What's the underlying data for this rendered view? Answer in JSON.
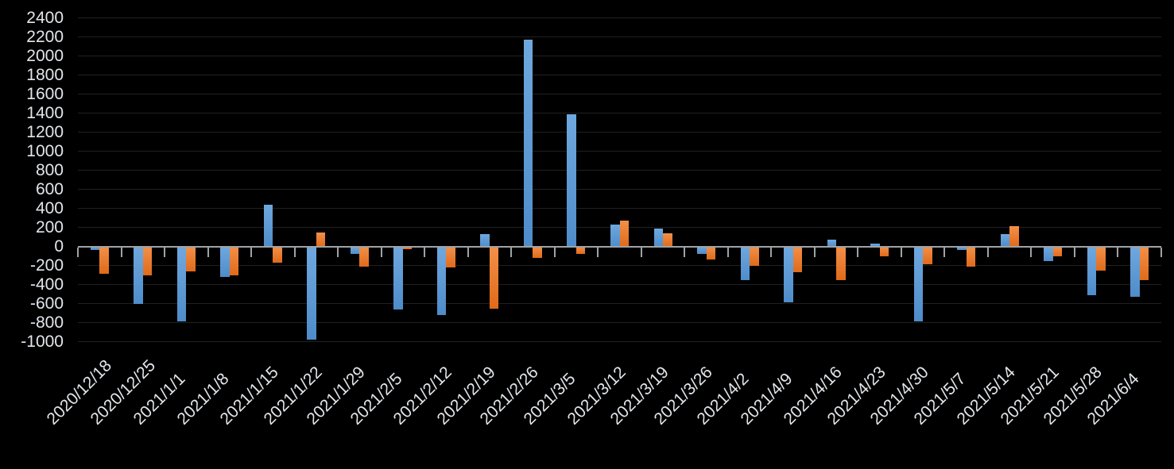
{
  "chart_data": {
    "type": "bar",
    "title": "",
    "categories": [
      "2020/12/18",
      "2020/12/25",
      "2021/1/1",
      "2021/1/8",
      "2021/1/15",
      "2021/1/22",
      "2021/1/29",
      "2021/2/5",
      "2021/2/12",
      "2021/2/19",
      "2021/2/26",
      "2021/3/5",
      "2021/3/12",
      "2021/3/19",
      "2021/3/26",
      "2021/4/2",
      "2021/4/9",
      "2021/4/16",
      "2021/4/23",
      "2021/4/30",
      "2021/5/7",
      "2021/5/14",
      "2021/5/21",
      "2021/5/28",
      "2021/6/4"
    ],
    "series": [
      {
        "name": "series-blue",
        "color": "#5B9BD5",
        "values": [
          -40,
          -600,
          -790,
          -320,
          440,
          -980,
          -80,
          -660,
          -720,
          130,
          2170,
          1390,
          230,
          190,
          -80,
          -350,
          -590,
          70,
          30,
          -790,
          -40,
          130,
          -150,
          -510,
          -530
        ]
      },
      {
        "name": "series-orange",
        "color": "#ED7D31",
        "values": [
          -290,
          -300,
          -260,
          -300,
          -170,
          150,
          -210,
          -30,
          -220,
          -650,
          -120,
          -80,
          270,
          140,
          -140,
          -200,
          -270,
          -350,
          -100,
          -190,
          -210,
          210,
          -100,
          -250,
          -350
        ]
      }
    ],
    "y_axis": {
      "min": -1000,
      "max": 2400,
      "step": 200,
      "tick_labels": [
        "2400",
        "2200",
        "2000",
        "1800",
        "1600",
        "1400",
        "1200",
        "1000",
        "800",
        "600",
        "400",
        "200",
        "0",
        "-200",
        "-400",
        "-600",
        "-800",
        "-1000"
      ]
    },
    "x_axis": {
      "label_rotation_deg": -45
    },
    "layout": {
      "grid": true,
      "legend": "none",
      "background": "#000000",
      "grid_color": "#212121",
      "axis_color": "#9fa3a6",
      "label_color": "#e2e6ea"
    }
  }
}
